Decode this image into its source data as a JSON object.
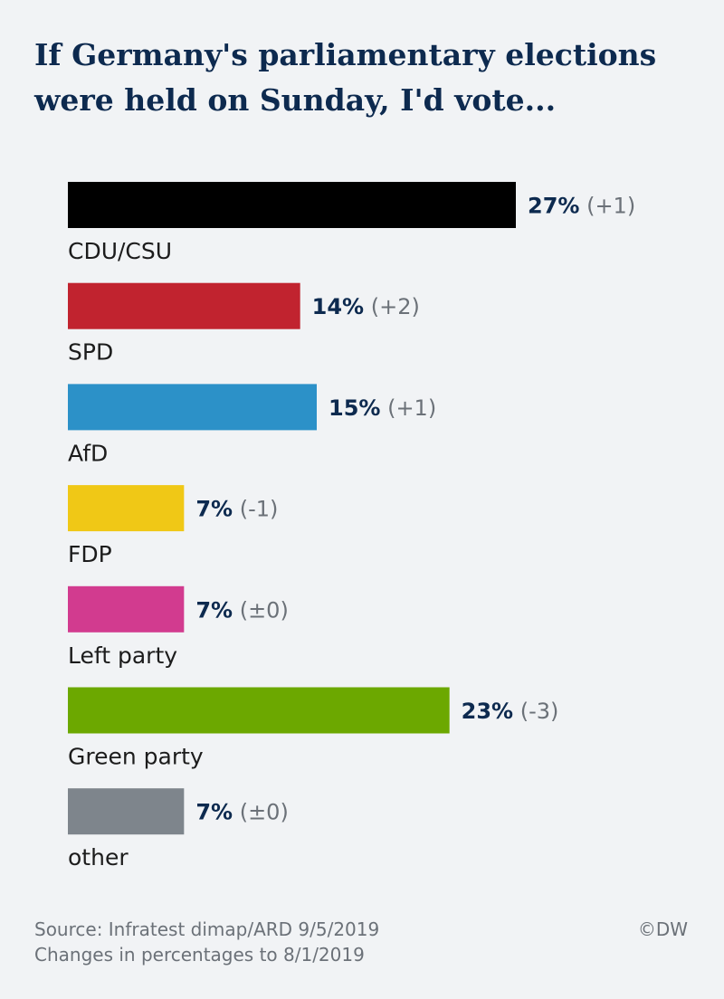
{
  "chart_data": {
    "type": "bar",
    "orientation": "horizontal",
    "title": "If Germany's parliamentary elections were held on Sunday, I'd vote...",
    "categories": [
      "CDU/CSU",
      "SPD",
      "AfD",
      "FDP",
      "Left party",
      "Green party",
      "other"
    ],
    "values": [
      27,
      14,
      15,
      7,
      7,
      23,
      7
    ],
    "value_labels": [
      "27%",
      "14%",
      "15%",
      "7%",
      "7%",
      "23%",
      "7%"
    ],
    "changes": [
      "(+1)",
      "(+2)",
      "(+1)",
      "(-1)",
      "(±0)",
      "(-3)",
      "(±0)"
    ],
    "colors": [
      "#000000",
      "#c1232f",
      "#2c91c8",
      "#f0c816",
      "#d23b8f",
      "#6ca800",
      "#7e858c"
    ],
    "unit": "%",
    "xlim": [
      0,
      27
    ],
    "grid": false,
    "legend": "none"
  },
  "footer": {
    "source": "Source: Infratest dimap/ARD 9/5/2019",
    "note": "Changes in percentages to 8/1/2019",
    "brand": "©DW"
  }
}
